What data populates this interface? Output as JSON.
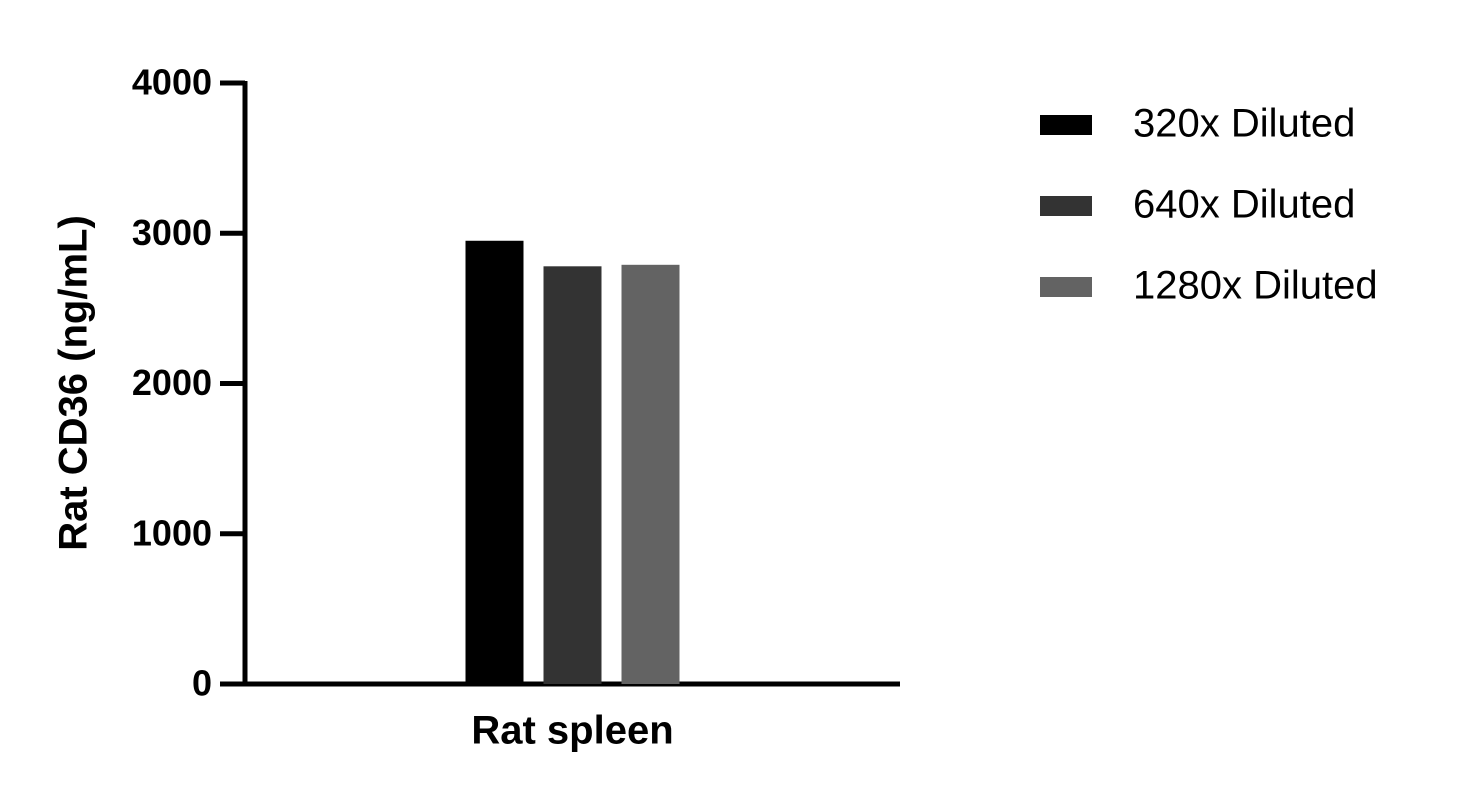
{
  "chart_data": {
    "type": "bar",
    "y_label": "Rat CD36 (ng/mL)",
    "categories": [
      "Rat spleen"
    ],
    "series": [
      {
        "name": "320x Diluted",
        "color": "#000000",
        "values": [
          2950
        ]
      },
      {
        "name": "640x Diluted",
        "color": "#333333",
        "values": [
          2780
        ]
      },
      {
        "name": "1280x Diluted",
        "color": "#636363",
        "values": [
          2790
        ]
      }
    ],
    "ylim": [
      0,
      4000
    ],
    "yticks": [
      0,
      1000,
      2000,
      3000,
      4000
    ],
    "legend": "right"
  }
}
